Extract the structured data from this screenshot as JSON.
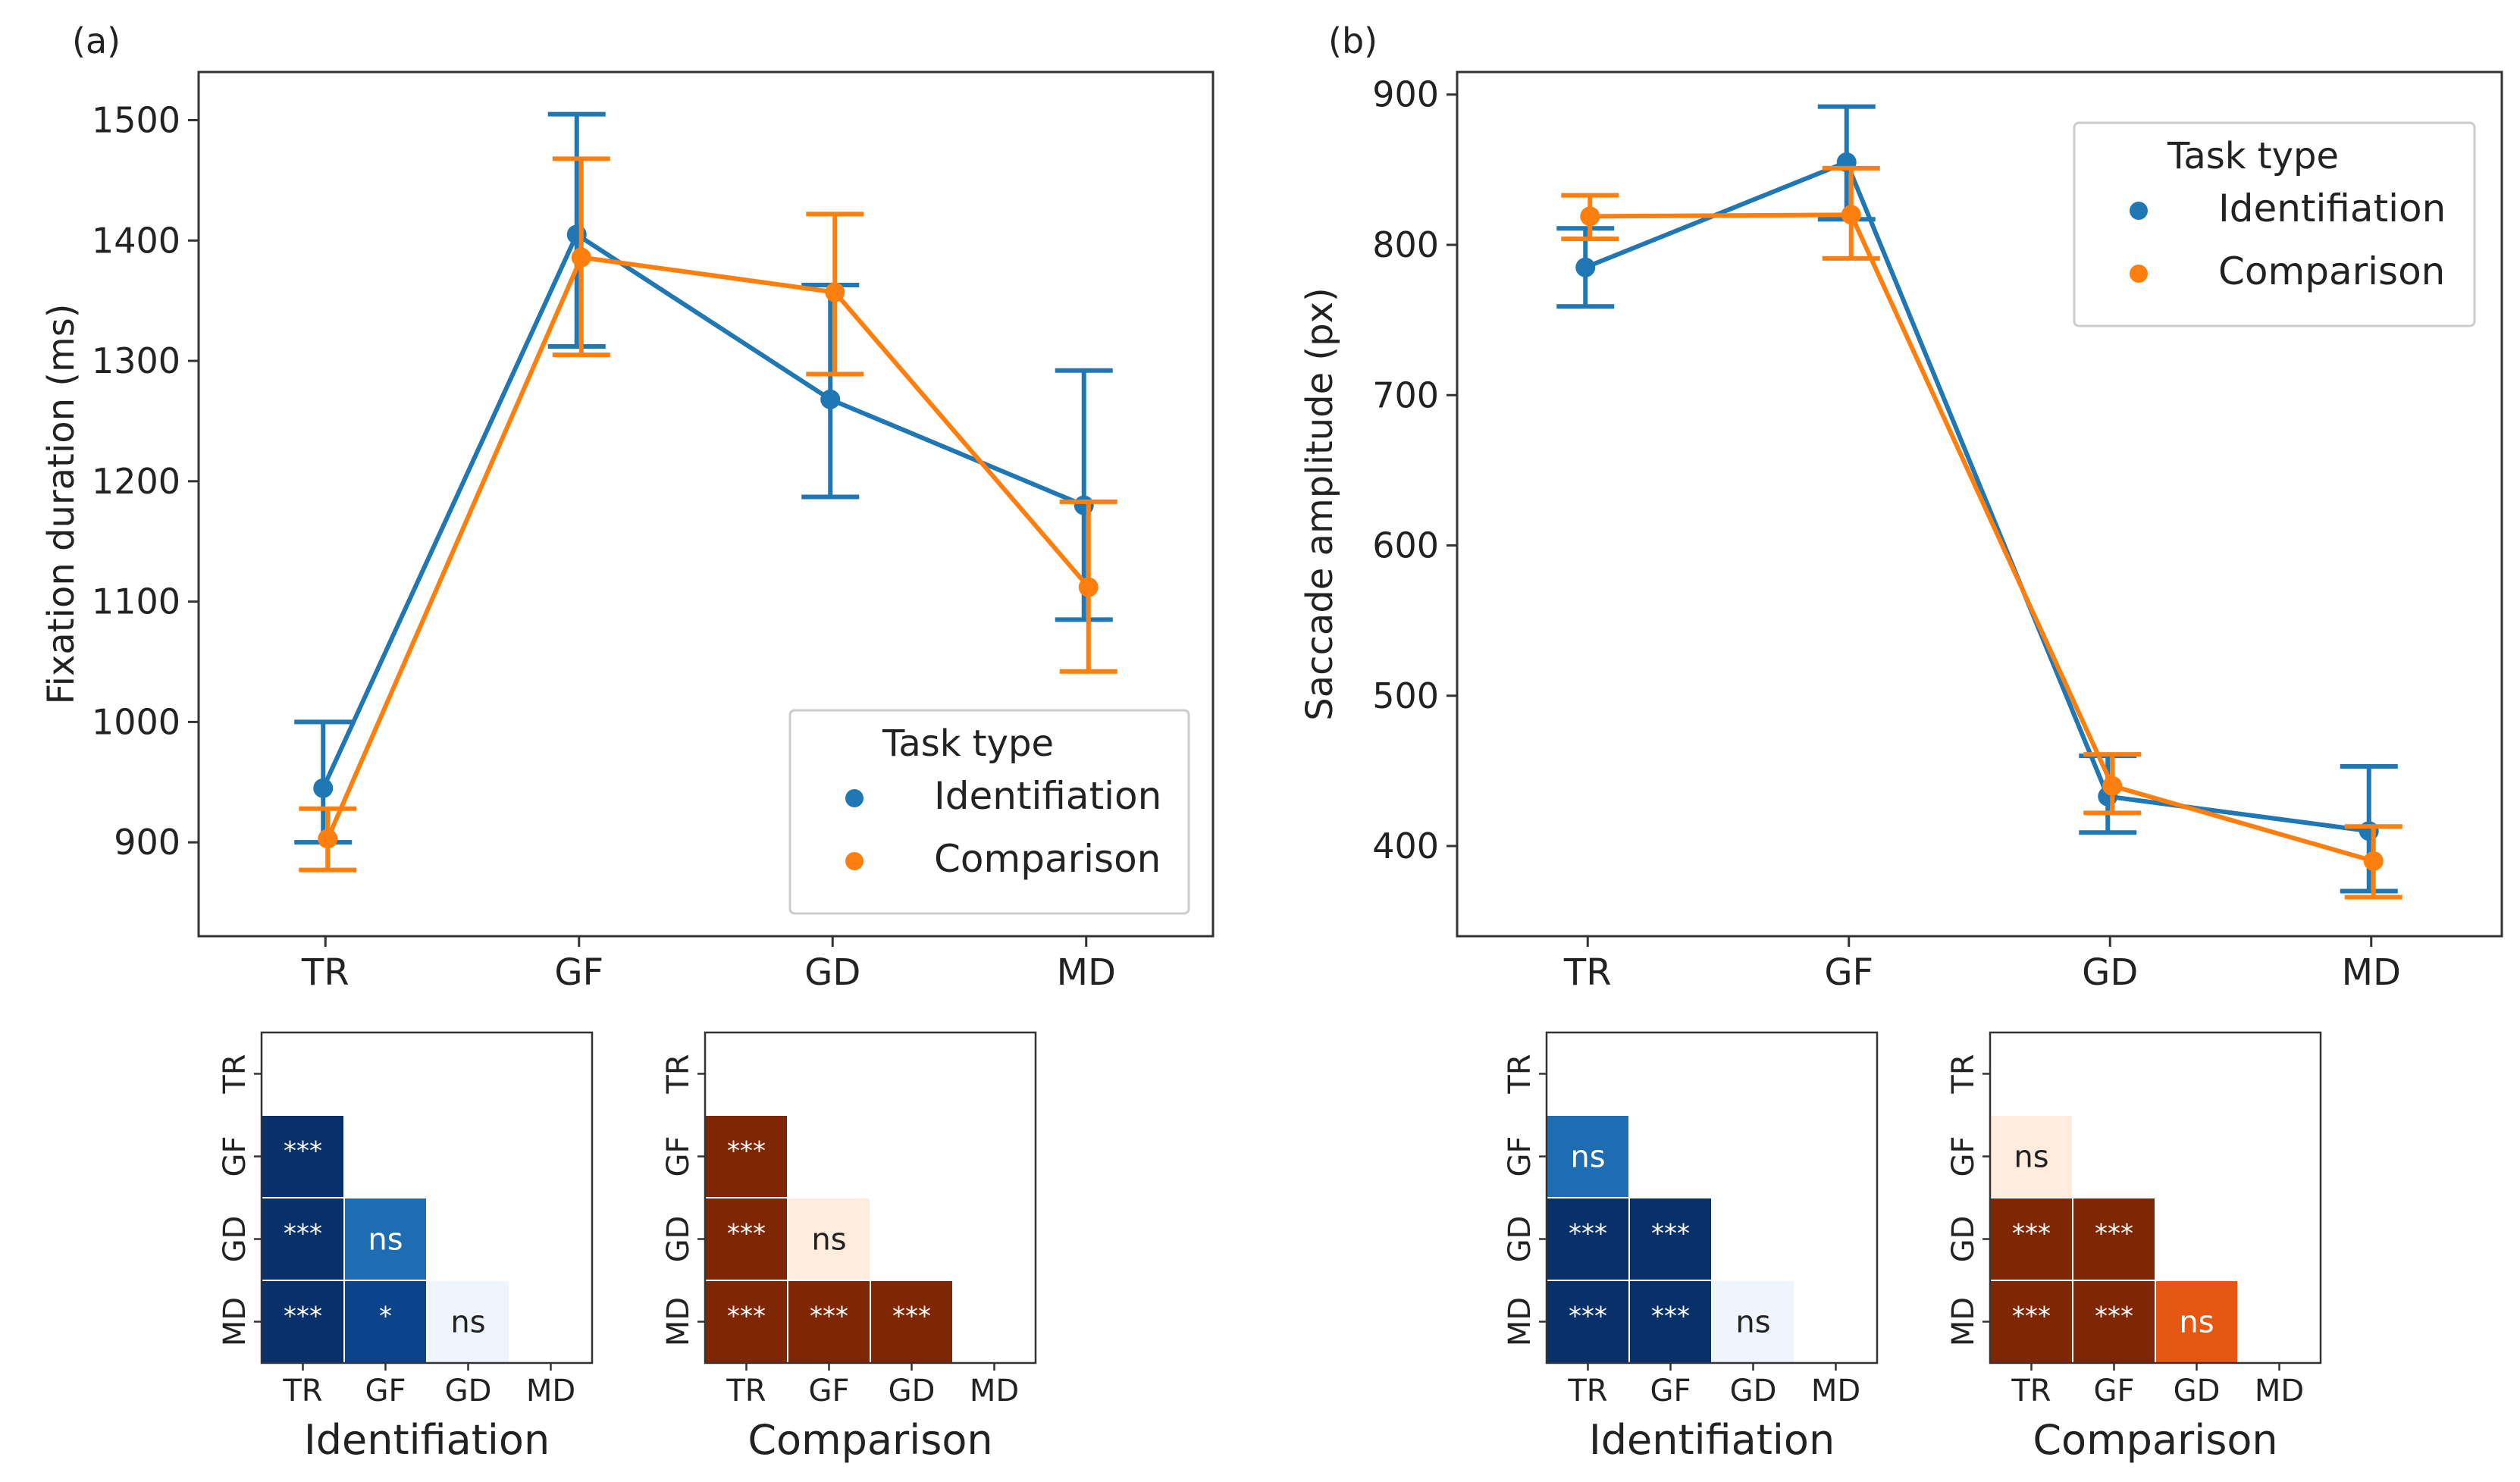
{
  "panels": [
    {
      "id": "a",
      "panel_label": "(a)",
      "chart_data": {
        "type": "line",
        "ylabel": "Fixation duration (ms)",
        "xlabel": "",
        "categories": [
          "TR",
          "GF",
          "GD",
          "MD"
        ],
        "ylim": [
          822,
          1540
        ],
        "yticks": [
          900,
          1000,
          1100,
          1200,
          1300,
          1400,
          1500
        ],
        "grid": false,
        "legend": {
          "title": "Task type",
          "position": "bottom-right"
        },
        "series": [
          {
            "name": "Identifiation",
            "color": "#1f77b4",
            "values": [
              945,
              1405,
              1268,
              1180
            ],
            "err_low": [
              900,
              1312,
              1187,
              1085
            ],
            "err_high": [
              1000,
              1505,
              1363,
              1292
            ]
          },
          {
            "name": "Comparison",
            "color": "#ff7f0e",
            "values": [
              903,
              1386,
              1357,
              1112
            ],
            "err_low": [
              877,
              1305,
              1289,
              1042
            ],
            "err_high": [
              928,
              1468,
              1422,
              1183
            ]
          }
        ]
      },
      "heatmaps": [
        {
          "label": "Identifiation",
          "cmap": "blues",
          "ticks": [
            "TR",
            "GF",
            "GD",
            "MD"
          ],
          "cells": [
            {
              "row": 1,
              "col": 0,
              "text": "***",
              "level": 1.0
            },
            {
              "row": 2,
              "col": 0,
              "text": "***",
              "level": 1.0
            },
            {
              "row": 2,
              "col": 1,
              "text": "ns",
              "level": 0.7
            },
            {
              "row": 3,
              "col": 0,
              "text": "***",
              "level": 1.0
            },
            {
              "row": 3,
              "col": 1,
              "text": "*",
              "level": 0.92
            },
            {
              "row": 3,
              "col": 2,
              "text": "ns",
              "level": 0.03
            }
          ]
        },
        {
          "label": "Comparison",
          "cmap": "oranges",
          "ticks": [
            "TR",
            "GF",
            "GD",
            "MD"
          ],
          "cells": [
            {
              "row": 1,
              "col": 0,
              "text": "***",
              "level": 1.0
            },
            {
              "row": 2,
              "col": 0,
              "text": "***",
              "level": 1.0
            },
            {
              "row": 2,
              "col": 1,
              "text": "ns",
              "level": 0.04
            },
            {
              "row": 3,
              "col": 0,
              "text": "***",
              "level": 1.0
            },
            {
              "row": 3,
              "col": 1,
              "text": "***",
              "level": 1.0
            },
            {
              "row": 3,
              "col": 2,
              "text": "***",
              "level": 1.0
            }
          ]
        }
      ]
    },
    {
      "id": "b",
      "panel_label": "(b)",
      "chart_data": {
        "type": "line",
        "ylabel": "Saccade amplitude (px)",
        "xlabel": "",
        "categories": [
          "TR",
          "GF",
          "GD",
          "MD"
        ],
        "ylim": [
          340,
          915
        ],
        "yticks": [
          400,
          500,
          600,
          700,
          800,
          900
        ],
        "grid": false,
        "legend": {
          "title": "Task type",
          "position": "top-right"
        },
        "series": [
          {
            "name": "Identifiation",
            "color": "#1f77b4",
            "values": [
              785,
              855,
              433,
              410
            ],
            "err_low": [
              759,
              817,
              409,
              370
            ],
            "err_high": [
              811,
              892,
              460,
              453
            ]
          },
          {
            "name": "Comparison",
            "color": "#ff7f0e",
            "values": [
              819,
              820,
              440,
              390
            ],
            "err_low": [
              804,
              791,
              422,
              366
            ],
            "err_high": [
              833,
              851,
              461,
              413
            ]
          }
        ]
      },
      "heatmaps": [
        {
          "label": "Identifiation",
          "cmap": "blues",
          "ticks": [
            "TR",
            "GF",
            "GD",
            "MD"
          ],
          "cells": [
            {
              "row": 1,
              "col": 0,
              "text": "ns",
              "level": 0.7
            },
            {
              "row": 2,
              "col": 0,
              "text": "***",
              "level": 1.0
            },
            {
              "row": 2,
              "col": 1,
              "text": "***",
              "level": 1.0
            },
            {
              "row": 3,
              "col": 0,
              "text": "***",
              "level": 1.0
            },
            {
              "row": 3,
              "col": 1,
              "text": "***",
              "level": 1.0
            },
            {
              "row": 3,
              "col": 2,
              "text": "ns",
              "level": 0.03
            }
          ]
        },
        {
          "label": "Comparison",
          "cmap": "oranges",
          "ticks": [
            "TR",
            "GF",
            "GD",
            "MD"
          ],
          "cells": [
            {
              "row": 1,
              "col": 0,
              "text": "ns",
              "level": 0.04
            },
            {
              "row": 2,
              "col": 0,
              "text": "***",
              "level": 1.0
            },
            {
              "row": 2,
              "col": 1,
              "text": "***",
              "level": 1.0
            },
            {
              "row": 3,
              "col": 0,
              "text": "***",
              "level": 1.0
            },
            {
              "row": 3,
              "col": 1,
              "text": "***",
              "level": 1.0
            },
            {
              "row": 3,
              "col": 2,
              "text": "ns",
              "level": 0.7
            }
          ]
        }
      ]
    }
  ]
}
